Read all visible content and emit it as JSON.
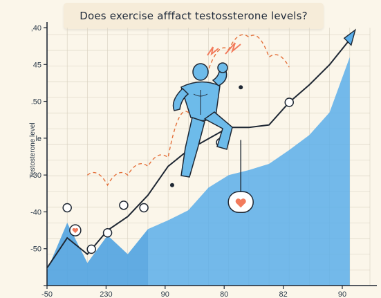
{
  "chart_data": {
    "type": "area",
    "title": "Does exercise  afffact testossterone  levels?",
    "ylabel": "Testosterone level",
    "ytick_labels": [
      ",40",
      "45",
      ".50",
      "le",
      "-30",
      "-40",
      "-50",
      ""
    ],
    "xtick_labels": [
      "-50",
      "230",
      "90",
      "80",
      "82",
      "90"
    ],
    "area_series": {
      "x": [
        0,
        1,
        2,
        3,
        4,
        5,
        6,
        7,
        8,
        9,
        10,
        11,
        12,
        13,
        14,
        15
      ],
      "y": [
        12,
        50,
        18,
        40,
        25,
        45,
        52,
        60,
        78,
        88,
        92,
        97,
        108,
        120,
        138,
        182
      ]
    },
    "line_series": {
      "x": [
        0,
        1,
        2,
        3,
        4,
        5,
        6,
        7,
        8,
        9,
        10,
        11,
        12,
        13,
        14,
        15
      ],
      "y": [
        14,
        38,
        25,
        44,
        55,
        72,
        95,
        108,
        117,
        126,
        126,
        128,
        146,
        160,
        176,
        196
      ]
    },
    "dashed_path": {
      "x": [
        2,
        3,
        4,
        5,
        6,
        7,
        8,
        9,
        10,
        11,
        12
      ],
      "y": [
        88,
        80,
        88,
        95,
        102,
        138,
        172,
        188,
        198,
        182,
        174
      ]
    },
    "markers": [
      {
        "x": 1.4,
        "y": 44,
        "kind": "heart"
      },
      {
        "x": 2.2,
        "y": 29,
        "kind": "ring"
      },
      {
        "x": 3.0,
        "y": 42,
        "kind": "ring"
      },
      {
        "x": 3.8,
        "y": 64,
        "kind": "ring"
      },
      {
        "x": 4.8,
        "y": 62,
        "kind": "ring"
      },
      {
        "x": 6.2,
        "y": 80,
        "kind": "dot"
      },
      {
        "x": 8.6,
        "y": 114,
        "kind": "ring"
      },
      {
        "x": 9.6,
        "y": 158,
        "kind": "dot"
      },
      {
        "x": 12.0,
        "y": 146,
        "kind": "ring"
      },
      {
        "x": 1.0,
        "y": 62,
        "kind": "ring"
      }
    ],
    "ylim": [
      0,
      200
    ],
    "xlim": [
      0,
      16
    ],
    "grid": true
  },
  "colors": {
    "area": "#5aaeea",
    "area_dark": "#3f93d4",
    "line": "#1e2733",
    "dashed": "#e4703a",
    "grid": "#d6cfbe",
    "figure_skin": "#6dbbea",
    "heart": "#f27b5c"
  },
  "icons": {
    "figure": "flexing-athlete-icon",
    "heart": "heart-icon",
    "spark": "lightning-spark-icon",
    "arrow": "trend-arrow-icon"
  }
}
